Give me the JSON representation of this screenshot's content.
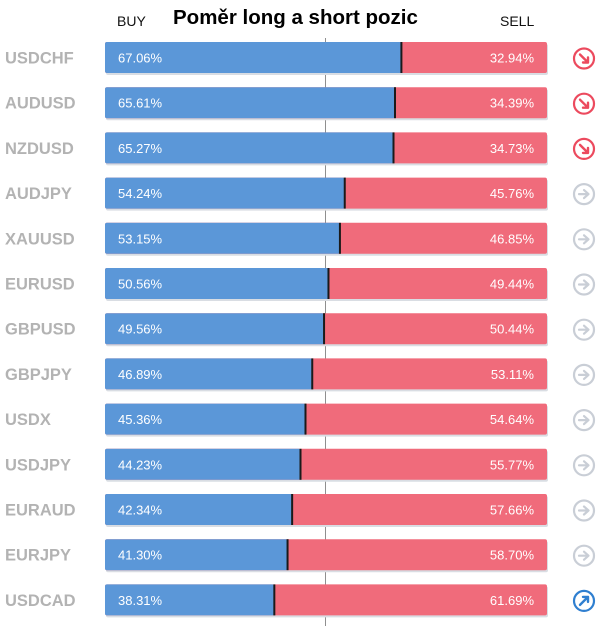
{
  "chart_data": {
    "type": "bar",
    "title": "Poměr long a short pozic",
    "series_labels": {
      "buy": "BUY",
      "sell": "SELL"
    },
    "categories": [
      "USDCHF",
      "AUDUSD",
      "NZDUSD",
      "AUDJPY",
      "XAUUSD",
      "EURUSD",
      "GBPUSD",
      "GBPJPY",
      "USDX",
      "USDJPY",
      "EURAUD",
      "EURJPY",
      "USDCAD"
    ],
    "buy": [
      67.06,
      65.61,
      65.27,
      54.24,
      53.15,
      50.56,
      49.56,
      46.89,
      45.36,
      44.23,
      42.34,
      41.3,
      38.31
    ],
    "sell": [
      32.94,
      34.39,
      34.73,
      45.76,
      46.85,
      49.44,
      50.44,
      53.11,
      54.64,
      55.77,
      57.66,
      58.7,
      61.69
    ],
    "buy_labels": [
      "67.06%",
      "65.61%",
      "65.27%",
      "54.24%",
      "53.15%",
      "50.56%",
      "49.56%",
      "46.89%",
      "45.36%",
      "44.23%",
      "42.34%",
      "41.30%",
      "38.31%"
    ],
    "sell_labels": [
      "32.94%",
      "34.39%",
      "34.73%",
      "45.76%",
      "46.85%",
      "49.44%",
      "50.44%",
      "53.11%",
      "54.64%",
      "55.77%",
      "57.66%",
      "58.70%",
      "61.69%"
    ],
    "xlim": [
      0,
      100
    ],
    "signals": [
      "down",
      "down",
      "down",
      "neutral",
      "neutral",
      "neutral",
      "neutral",
      "neutral",
      "neutral",
      "neutral",
      "neutral",
      "neutral",
      "up"
    ],
    "colors": {
      "buy": "#5b97d8",
      "sell": "#f06b7b",
      "label_text": "#b3b3b3",
      "value_text": "#ffffff",
      "divider": "#1a1a1a",
      "signal_down": "#ec4a5e",
      "signal_up": "#2f7fd0",
      "signal_neutral": "#c9ced6"
    },
    "icons": {
      "down": "arrow-down-right-circle-icon",
      "up": "arrow-up-right-circle-icon",
      "neutral": "arrow-right-circle-icon"
    }
  }
}
